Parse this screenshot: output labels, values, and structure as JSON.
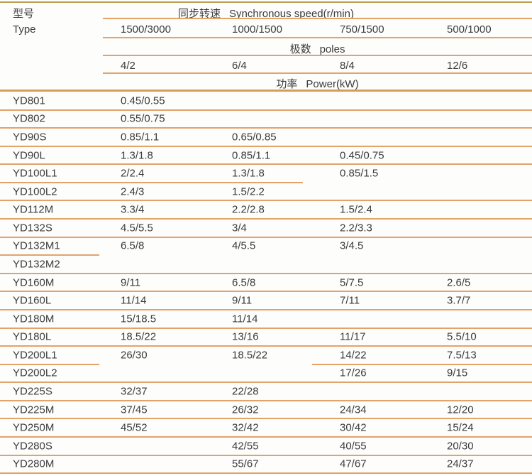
{
  "colors": {
    "background": "#fdfdfc",
    "text": "#3b3b3b",
    "row_line": "#e2a36b",
    "strong_line": "#d99c55",
    "top_line": "#bd9e55"
  },
  "header": {
    "col_model_zh": "型号",
    "col_model_en": "Type",
    "speed_zh": "同步转速",
    "speed_en": "Synchronous speed(r/min)",
    "speeds": [
      "1500/3000",
      "1000/1500",
      "750/1500",
      "500/1000"
    ],
    "poles_zh": "极数",
    "poles_en": "poles",
    "poles": [
      "4/2",
      "6/4",
      "8/4",
      "12/6"
    ],
    "power_zh": "功率",
    "power_en": "Power(kW)"
  },
  "rows": [
    {
      "model": "YD801",
      "values": [
        "0.45/0.55",
        "",
        "",
        ""
      ]
    },
    {
      "model": "YD802",
      "values": [
        "0.55/0.75",
        "",
        "",
        ""
      ]
    },
    {
      "model": "YD90S",
      "values": [
        "0.85/1.1",
        "0.65/0.85",
        "",
        ""
      ]
    },
    {
      "model": "YD90L",
      "values": [
        "1.3/1.8",
        "0.85/1.1",
        "0.45/0.75",
        ""
      ]
    },
    {
      "model": "YD100L1",
      "values": [
        "2/2.4",
        "1.3/1.8",
        "0.85/1.5",
        ""
      ]
    },
    {
      "model": "YD100L2",
      "values": [
        "2.4/3",
        "1.5/2.2",
        "",
        ""
      ]
    },
    {
      "model": "YD112M",
      "values": [
        "3.3/4",
        "2.2/2.8",
        "1.5/2.4",
        ""
      ]
    },
    {
      "model": "YD132S",
      "values": [
        "4.5/5.5",
        "3/4",
        "2.2/3.3",
        ""
      ]
    },
    {
      "model": "YD132M1",
      "values": [
        "6.5/8",
        "4/5.5",
        "3/4.5",
        ""
      ]
    },
    {
      "model": "YD132M2",
      "values": [
        "",
        "",
        "",
        ""
      ]
    },
    {
      "model": "YD160M",
      "values": [
        "9/11",
        "6.5/8",
        "5/7.5",
        "2.6/5"
      ]
    },
    {
      "model": "YD160L",
      "values": [
        "11/14",
        "9/11",
        "7/11",
        "3.7/7"
      ]
    },
    {
      "model": "YD180M",
      "values": [
        "15/18.5",
        "11/14",
        "",
        ""
      ]
    },
    {
      "model": "YD180L",
      "values": [
        "18.5/22",
        "13/16",
        "11/17",
        "5.5/10"
      ]
    },
    {
      "model": "YD200L1",
      "values": [
        "26/30",
        "18.5/22",
        "14/22",
        "7.5/13"
      ]
    },
    {
      "model": "YD200L2",
      "values": [
        "",
        "",
        "17/26",
        "9/15"
      ]
    },
    {
      "model": "YD225S",
      "values": [
        "32/37",
        "22/28",
        "",
        ""
      ]
    },
    {
      "model": "YD225M",
      "values": [
        "37/45",
        "26/32",
        "24/34",
        "12/20"
      ]
    },
    {
      "model": "YD250M",
      "values": [
        "45/52",
        "32/42",
        "30/42",
        "15/24"
      ]
    },
    {
      "model": "YD280S",
      "values": [
        "",
        "42/55",
        "40/55",
        "20/30"
      ]
    },
    {
      "model": "YD280M",
      "values": [
        "",
        "55/67",
        "47/67",
        "24/37"
      ]
    }
  ]
}
